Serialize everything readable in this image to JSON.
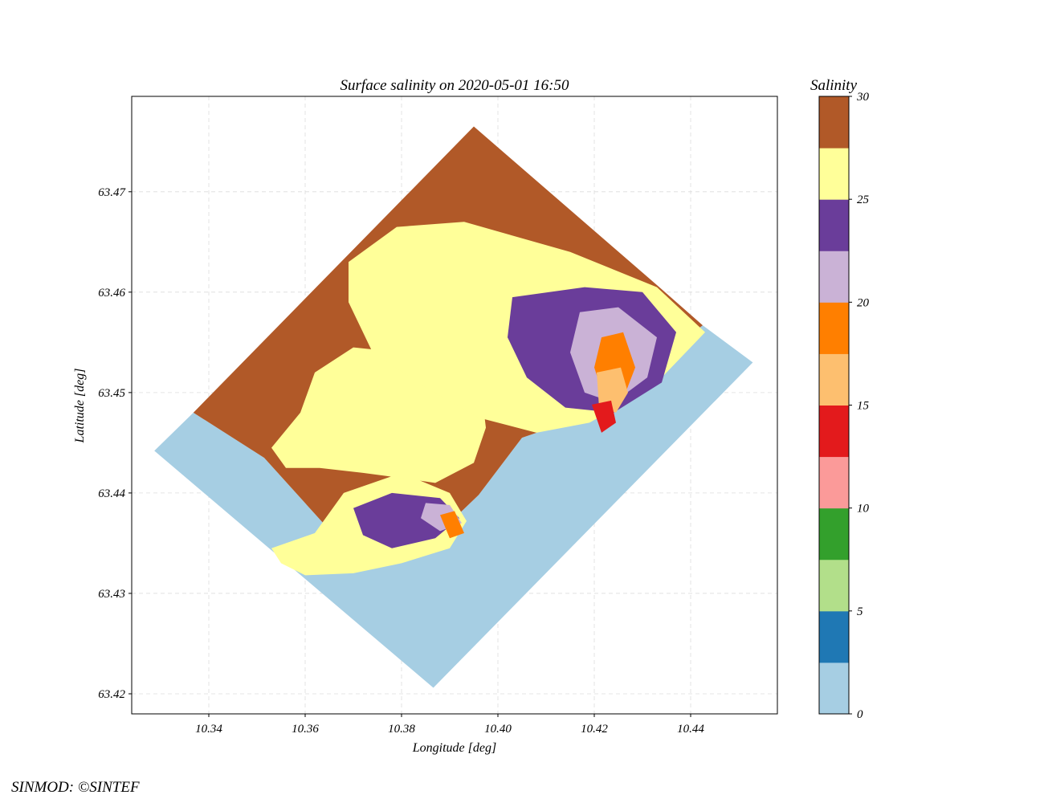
{
  "chart_data": {
    "type": "heatmap",
    "title": "Surface salinity on 2020-05-01 16:50",
    "xlabel": "Longitude [deg]",
    "ylabel": "Latitude [deg]",
    "xlim": [
      10.324,
      10.458
    ],
    "ylim": [
      63.418,
      63.4795
    ],
    "x_ticks": [
      10.34,
      10.36,
      10.38,
      10.4,
      10.42,
      10.44
    ],
    "x_tick_labels": [
      "10.34",
      "10.36",
      "10.38",
      "10.40",
      "10.42",
      "10.44"
    ],
    "y_ticks": [
      63.42,
      63.43,
      63.44,
      63.45,
      63.46,
      63.47
    ],
    "y_tick_labels": [
      "63.42",
      "63.43",
      "63.44",
      "63.45",
      "63.46",
      "63.47"
    ],
    "grid": true,
    "colorbar": {
      "label": "Salinity",
      "range": [
        0,
        30
      ],
      "ticks": [
        0,
        5,
        10,
        15,
        20,
        25,
        30
      ],
      "tick_labels": [
        "0",
        "5",
        "10",
        "15",
        "20",
        "25",
        "30"
      ],
      "colors": [
        "#a6cee3",
        "#1f78b4",
        "#b2df8a",
        "#33a02c",
        "#fb9a99",
        "#e31a1c",
        "#fdbf6f",
        "#ff7f00",
        "#cab2d6",
        "#6a3d9a",
        "#ffff99",
        "#b15928"
      ]
    },
    "regions": [
      {
        "level": 0,
        "points": [
          [
            10.3287,
            63.4442
          ],
          [
            10.3368,
            63.448
          ],
          [
            10.3515,
            63.4435
          ],
          [
            10.369,
            63.4342
          ],
          [
            10.386,
            63.4352
          ],
          [
            10.396,
            63.4398
          ],
          [
            10.405,
            63.4455
          ],
          [
            10.419,
            63.4478
          ],
          [
            10.43,
            63.452
          ],
          [
            10.4425,
            63.4567
          ],
          [
            10.4529,
            63.453
          ],
          [
            10.3866,
            63.4206
          ]
        ]
      },
      {
        "level": 29,
        "points": [
          [
            10.3368,
            63.448
          ],
          [
            10.395,
            63.4765
          ],
          [
            10.4335,
            63.4605
          ],
          [
            10.4425,
            63.4567
          ],
          [
            10.43,
            63.452
          ],
          [
            10.419,
            63.4478
          ],
          [
            10.405,
            63.4455
          ],
          [
            10.396,
            63.4398
          ],
          [
            10.386,
            63.4352
          ],
          [
            10.369,
            63.4342
          ],
          [
            10.3515,
            63.4435
          ]
        ]
      },
      {
        "level": 26,
        "points": [
          [
            10.362,
            63.436
          ],
          [
            10.368,
            63.44
          ],
          [
            10.38,
            63.442
          ],
          [
            10.39,
            63.44
          ],
          [
            10.3935,
            63.4372
          ],
          [
            10.39,
            63.4345
          ],
          [
            10.38,
            63.433
          ],
          [
            10.37,
            63.432
          ],
          [
            10.36,
            63.4318
          ],
          [
            10.355,
            63.433
          ],
          [
            10.353,
            63.4345
          ]
        ]
      },
      {
        "level": 23,
        "points": [
          [
            10.37,
            63.4385
          ],
          [
            10.378,
            63.44
          ],
          [
            10.388,
            63.4395
          ],
          [
            10.392,
            63.4375
          ],
          [
            10.387,
            63.4355
          ],
          [
            10.378,
            63.4345
          ],
          [
            10.372,
            63.4358
          ]
        ]
      },
      {
        "level": 21,
        "points": [
          [
            10.385,
            63.439
          ],
          [
            10.39,
            63.4388
          ],
          [
            10.3925,
            63.437
          ],
          [
            10.388,
            63.4362
          ],
          [
            10.384,
            63.4375
          ]
        ]
      },
      {
        "level": 19,
        "points": [
          [
            10.388,
            63.4378
          ],
          [
            10.391,
            63.4382
          ],
          [
            10.393,
            63.436
          ],
          [
            10.39,
            63.4355
          ]
        ]
      },
      {
        "level": 26,
        "points": [
          [
            10.353,
            63.4445
          ],
          [
            10.359,
            63.448
          ],
          [
            10.362,
            63.452
          ],
          [
            10.37,
            63.4545
          ],
          [
            10.38,
            63.454
          ],
          [
            10.392,
            63.453
          ],
          [
            10.3965,
            63.4505
          ],
          [
            10.3975,
            63.4465
          ],
          [
            10.395,
            63.443
          ],
          [
            10.387,
            63.441
          ],
          [
            10.38,
            63.4415
          ],
          [
            10.372,
            63.442
          ],
          [
            10.363,
            63.4425
          ],
          [
            10.356,
            63.4425
          ]
        ]
      },
      {
        "level": 26,
        "points": [
          [
            10.369,
            63.463
          ],
          [
            10.379,
            63.4665
          ],
          [
            10.393,
            63.467
          ],
          [
            10.415,
            63.464
          ],
          [
            10.433,
            63.4605
          ],
          [
            10.443,
            63.456
          ],
          [
            10.432,
            63.4505
          ],
          [
            10.419,
            63.447
          ],
          [
            10.408,
            63.446
          ],
          [
            10.396,
            63.4475
          ],
          [
            10.385,
            63.4505
          ],
          [
            10.374,
            63.454
          ],
          [
            10.369,
            63.459
          ]
        ]
      },
      {
        "level": 23,
        "points": [
          [
            10.403,
            63.4595
          ],
          [
            10.418,
            63.4605
          ],
          [
            10.43,
            63.46
          ],
          [
            10.437,
            63.456
          ],
          [
            10.434,
            63.451
          ],
          [
            10.424,
            63.448
          ],
          [
            10.414,
            63.4485
          ],
          [
            10.406,
            63.4515
          ],
          [
            10.402,
            63.4555
          ]
        ]
      },
      {
        "level": 21,
        "points": [
          [
            10.417,
            63.458
          ],
          [
            10.425,
            63.4585
          ],
          [
            10.433,
            63.4555
          ],
          [
            10.431,
            63.4515
          ],
          [
            10.424,
            63.449
          ],
          [
            10.418,
            63.45
          ],
          [
            10.415,
            63.454
          ]
        ]
      },
      {
        "level": 19,
        "points": [
          [
            10.4215,
            63.4555
          ],
          [
            10.426,
            63.456
          ],
          [
            10.4285,
            63.4525
          ],
          [
            10.4265,
            63.45
          ],
          [
            10.422,
            63.4495
          ],
          [
            10.42,
            63.4525
          ]
        ]
      },
      {
        "level": 17,
        "points": [
          [
            10.4205,
            63.452
          ],
          [
            10.4255,
            63.4525
          ],
          [
            10.427,
            63.45
          ],
          [
            10.4245,
            63.448
          ],
          [
            10.421,
            63.4485
          ]
        ]
      },
      {
        "level": 13,
        "points": [
          [
            10.4195,
            63.4488
          ],
          [
            10.4235,
            63.4492
          ],
          [
            10.4245,
            63.447
          ],
          [
            10.4215,
            63.446
          ]
        ]
      }
    ]
  },
  "credit": "SINMOD: ©SINTEF"
}
